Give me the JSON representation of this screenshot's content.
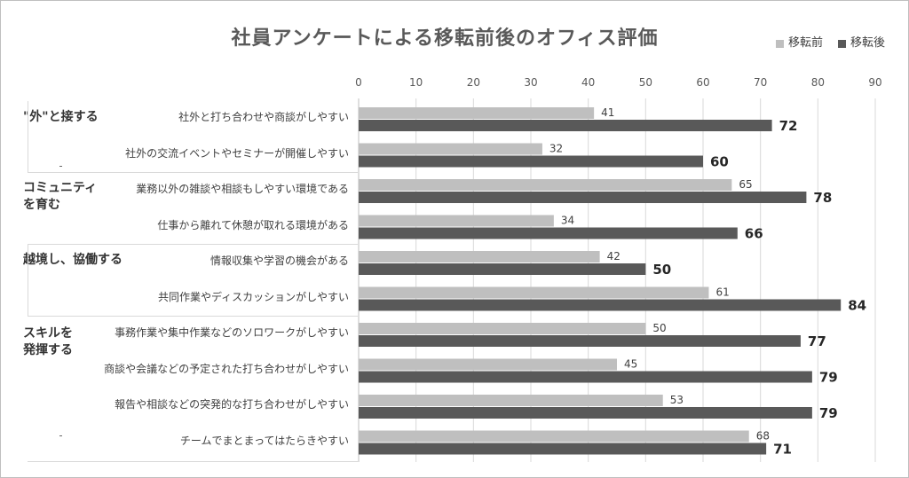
{
  "chart_data": {
    "type": "bar",
    "orientation": "horizontal",
    "title": "社員アンケートによる移転前後のオフィス評価",
    "xlim": [
      0,
      90
    ],
    "x_ticks": [
      0,
      10,
      20,
      30,
      40,
      50,
      60,
      70,
      80,
      90
    ],
    "grid": true,
    "legend_position": "top-right",
    "groups": [
      {
        "label": "\"外\"と接する",
        "categories": [
          "社外と打ち合わせや商談がしやすい",
          "社外の交流イベントやセミナーが開催しやすい"
        ]
      },
      {
        "label": "コミュニティ\nを育む",
        "categories": [
          "業務以外の雑談や相談もしやすい環境である",
          "仕事から離れて休憩が取れる環境がある"
        ]
      },
      {
        "label": "越境し、協働する",
        "categories": [
          "情報収集や学習の機会がある",
          "共同作業やディスカッションがしやすい"
        ]
      },
      {
        "label": "スキルを\n発揮する",
        "categories": [
          "事務作業や集中作業などのソロワークがしやすい",
          "商談や会議などの予定された打ち合わせがしやすい",
          "報告や相談などの突発的な打ち合わせがしやすい",
          "チームでまとまってはたらきやすい"
        ]
      }
    ],
    "categories": [
      "社外と打ち合わせや商談がしやすい",
      "社外の交流イベントやセミナーが開催しやすい",
      "業務以外の雑談や相談もしやすい環境である",
      "仕事から離れて休憩が取れる環境がある",
      "情報収集や学習の機会がある",
      "共同作業やディスカッションがしやすい",
      "事務作業や集中作業などのソロワークがしやすい",
      "商談や会議などの予定された打ち合わせがしやすい",
      "報告や相談などの突発的な打ち合わせがしやすい",
      "チームでまとまってはたらきやすい"
    ],
    "series": [
      {
        "name": "移転前",
        "color": "#bfbfbf",
        "values": [
          41,
          32,
          65,
          34,
          42,
          61,
          50,
          45,
          53,
          68
        ]
      },
      {
        "name": "移転後",
        "color": "#595959",
        "values": [
          72,
          60,
          78,
          66,
          50,
          84,
          77,
          79,
          79,
          71
        ]
      }
    ]
  }
}
